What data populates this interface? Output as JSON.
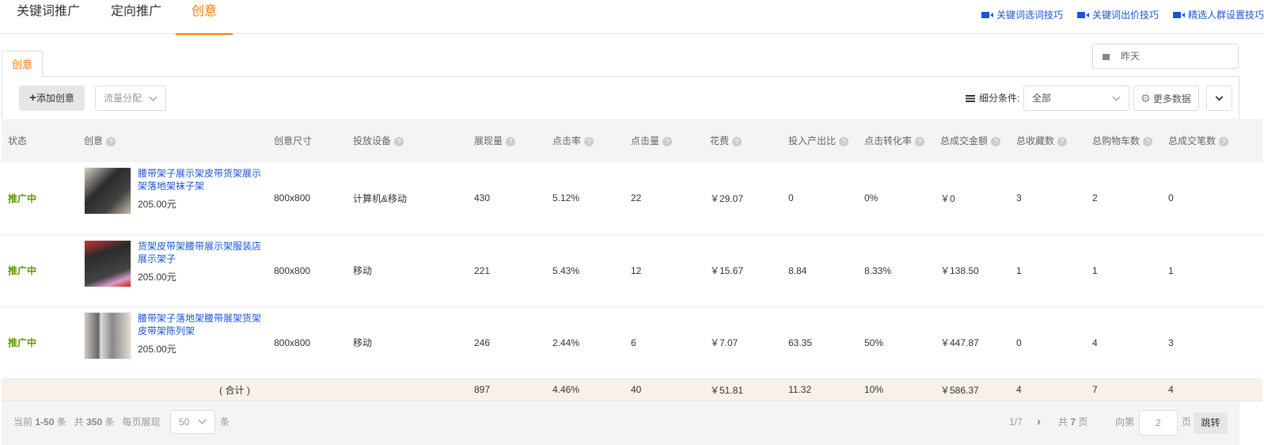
{
  "top_tabs": [
    "关键词推广",
    "定向推广",
    "创意"
  ],
  "active_tab": "创意",
  "tips": [
    "关键词选词技巧",
    "关键词出价技巧",
    "精选人群设置技巧"
  ],
  "sub_tab": "创意",
  "date_picker": {
    "value": "昨天",
    "icon": "calendar-icon"
  },
  "toolbar": {
    "add_label": "添加创意",
    "traffic_label": "流量分配",
    "segment_label": "细分条件:",
    "segment_value": "全部",
    "more_data": "更多数据"
  },
  "columns": [
    "状态",
    "创意",
    "创意尺寸",
    "投放设备",
    "展现量",
    "点击率",
    "点击量",
    "花费",
    "投入产出比",
    "点击转化率",
    "总成交金额",
    "总收藏数",
    "总购物车数",
    "总成交笔数"
  ],
  "rows": [
    {
      "status": "推广中",
      "title": "腰带架子展示架皮带货架展示架落地架袜子架",
      "price": "205.00元",
      "size": "800x800",
      "device": "计算机&移动",
      "impressions": "430",
      "ctr": "5.12%",
      "clicks": "22",
      "cost": "￥29.07",
      "roi": "0",
      "cvr": "0%",
      "gmv": "￥0",
      "favorites": "3",
      "carts": "2",
      "orders": "0"
    },
    {
      "status": "推广中",
      "title": "货架皮带架腰带展示架服装店展示架子",
      "price": "205.00元",
      "size": "800x800",
      "device": "移动",
      "impressions": "221",
      "ctr": "5.43%",
      "clicks": "12",
      "cost": "￥15.67",
      "roi": "8.84",
      "cvr": "8.33%",
      "gmv": "￥138.50",
      "favorites": "1",
      "carts": "1",
      "orders": "1"
    },
    {
      "status": "推广中",
      "title": "腰带架子落地架腰带展架货架皮带架陈列架",
      "price": "205.00元",
      "size": "800x800",
      "device": "移动",
      "impressions": "246",
      "ctr": "2.44%",
      "clicks": "6",
      "cost": "￥7.07",
      "roi": "63.35",
      "cvr": "50%",
      "gmv": "￥447.87",
      "favorites": "0",
      "carts": "4",
      "orders": "3"
    }
  ],
  "total": {
    "label": "( 合计 )",
    "impressions": "897",
    "ctr": "4.46%",
    "clicks": "40",
    "cost": "￥51.81",
    "roi": "11.32",
    "cvr": "10%",
    "gmv": "￥586.37",
    "favorites": "4",
    "carts": "7",
    "orders": "4"
  },
  "footer": {
    "current_prefix": "当前",
    "current_range": "1-50",
    "unit": "条",
    "total_prefix": "共",
    "total_count": "350",
    "per_page_label": "每页展现",
    "per_page": "50",
    "page_indicator": "1/7",
    "pages_prefix": "共",
    "pages_count": "7",
    "pages_unit": "页",
    "goto_label": "向第",
    "goto_value": "2",
    "goto_unit": "页",
    "goto_button": "跳转"
  },
  "colors": {
    "accent": "#ff7a00",
    "link": "#1a55d6",
    "status": "#5c9a00"
  }
}
